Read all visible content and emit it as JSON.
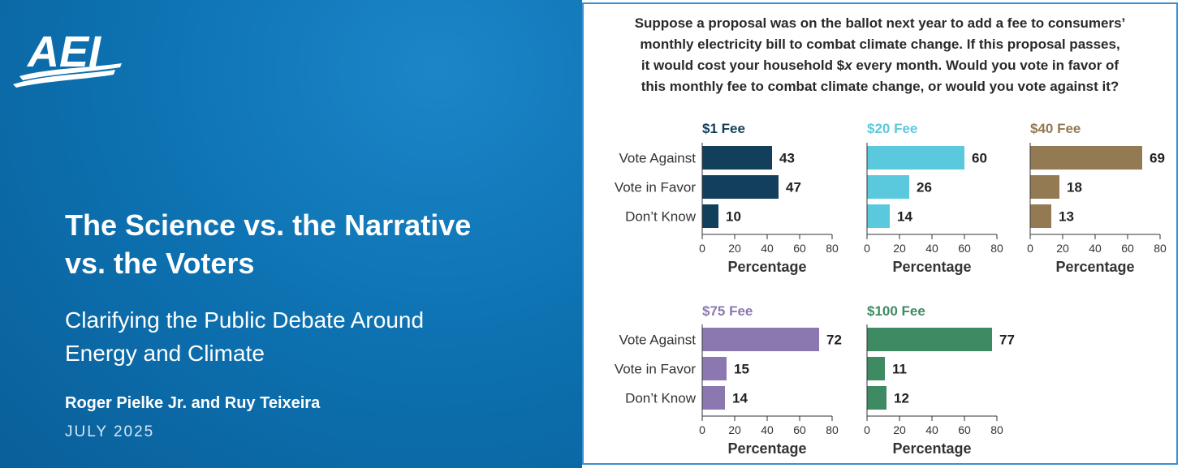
{
  "report": {
    "title_line1": "The Science vs. the Narrative",
    "title_line2": "vs. the Voters",
    "subtitle_line1": "Clarifying the Public Debate Around",
    "subtitle_line2": "Energy and Climate",
    "authors": "Roger Pielke Jr. and Ruy Teixeira",
    "date": "JULY 2025",
    "logo_text": "AEI"
  },
  "question": {
    "line1": "Suppose a proposal was on the ballot next year to add a fee to consumers’",
    "line2": "monthly electricity bill to combat climate change. If this proposal passes,",
    "line3_a": "it would cost your household $",
    "line3_x": "x",
    "line3_b": " every month. Would you vote in favor of",
    "line4": "this monthly fee to combat climate change, or would you vote against it?"
  },
  "chart_data": [
    {
      "type": "bar",
      "orientation": "horizontal",
      "title": "$1 Fee",
      "categories": [
        "Vote Against",
        "Vote in Favor",
        "Don’t Know"
      ],
      "values": [
        43,
        47,
        10
      ],
      "xlabel": "Percentage",
      "xlim": [
        0,
        80
      ],
      "xticks": [
        0,
        20,
        40,
        60,
        80
      ],
      "color": "#123f5b",
      "show_category_labels": true
    },
    {
      "type": "bar",
      "orientation": "horizontal",
      "title": "$20 Fee",
      "categories": [
        "Vote Against",
        "Vote in Favor",
        "Don’t Know"
      ],
      "values": [
        60,
        26,
        14
      ],
      "xlabel": "Percentage",
      "xlim": [
        0,
        80
      ],
      "xticks": [
        0,
        20,
        40,
        60,
        80
      ],
      "color": "#5bc9dd",
      "show_category_labels": false
    },
    {
      "type": "bar",
      "orientation": "horizontal",
      "title": "$40 Fee",
      "categories": [
        "Vote Against",
        "Vote in Favor",
        "Don’t Know"
      ],
      "values": [
        69,
        18,
        13
      ],
      "xlabel": "Percentage",
      "xlim": [
        0,
        80
      ],
      "xticks": [
        0,
        20,
        40,
        60,
        80
      ],
      "color": "#947a52",
      "show_category_labels": false
    },
    {
      "type": "bar",
      "orientation": "horizontal",
      "title": "$75 Fee",
      "categories": [
        "Vote Against",
        "Vote in Favor",
        "Don’t Know"
      ],
      "values": [
        72,
        15,
        14
      ],
      "xlabel": "Percentage",
      "xlim": [
        0,
        80
      ],
      "xticks": [
        0,
        20,
        40,
        60,
        80
      ],
      "color": "#8c78b0",
      "show_category_labels": true
    },
    {
      "type": "bar",
      "orientation": "horizontal",
      "title": "$100 Fee",
      "categories": [
        "Vote Against",
        "Vote in Favor",
        "Don’t Know"
      ],
      "values": [
        77,
        11,
        12
      ],
      "xlabel": "Percentage",
      "xlim": [
        0,
        80
      ],
      "xticks": [
        0,
        20,
        40,
        60,
        80
      ],
      "color": "#3e8a63",
      "show_category_labels": false
    }
  ]
}
